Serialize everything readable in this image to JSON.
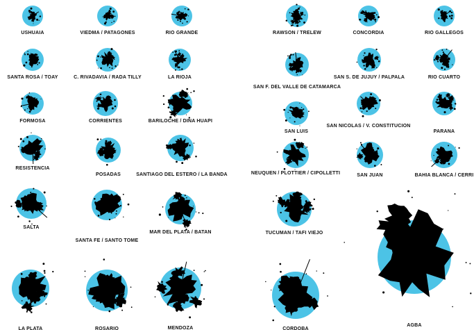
{
  "colors": {
    "circle": "#4cc3e6",
    "footprint": "#000000",
    "label": "#111111"
  },
  "cities": [
    {
      "label": "USHUAIA"
    },
    {
      "label": "VIEDMA / PATAGONES"
    },
    {
      "label": "RIO GRANDE"
    },
    {
      "label": "RAWSON / TRELEW"
    },
    {
      "label": "CONCORDIA"
    },
    {
      "label": "RIO GALLEGOS"
    },
    {
      "label": "SANTA ROSA / TOAY"
    },
    {
      "label": "C. RIVADAVIA / RADA TILLY"
    },
    {
      "label": "LA RIOJA"
    },
    {
      "label": "SAN F. DEL VALLE DE CATAMARCA"
    },
    {
      "label": "SAN S. DE JUJUY / PALPALA"
    },
    {
      "label": "RIO CUARTO"
    },
    {
      "label": "FORMOSA"
    },
    {
      "label": "CORRIENTES"
    },
    {
      "label": "BARILOCHE / DINA HUAPI"
    },
    {
      "label": "SAN LUIS"
    },
    {
      "label": "SAN NICOLAS / V. CONSTITUCION"
    },
    {
      "label": "PARANA"
    },
    {
      "label": "RESISTENCIA"
    },
    {
      "label": "POSADAS"
    },
    {
      "label": "SANTIAGO DEL ESTERO / LA BANDA"
    },
    {
      "label": "NEUQUEN / PLOTTIER / CIPOLLETTI"
    },
    {
      "label": "SAN JUAN"
    },
    {
      "label": "BAHIA BLANCA / CERRI"
    },
    {
      "label": "SALTA"
    },
    {
      "label": "SANTA FE / SANTO TOME"
    },
    {
      "label": "MAR DEL PLATA / BATAN"
    },
    {
      "label": "TUCUMAN / TAFI VIEJO"
    },
    {
      "label": "AGBA"
    },
    {
      "label": "LA PLATA"
    },
    {
      "label": "ROSARIO"
    },
    {
      "label": "MENDOZA"
    },
    {
      "label": "CORDOBA"
    }
  ]
}
